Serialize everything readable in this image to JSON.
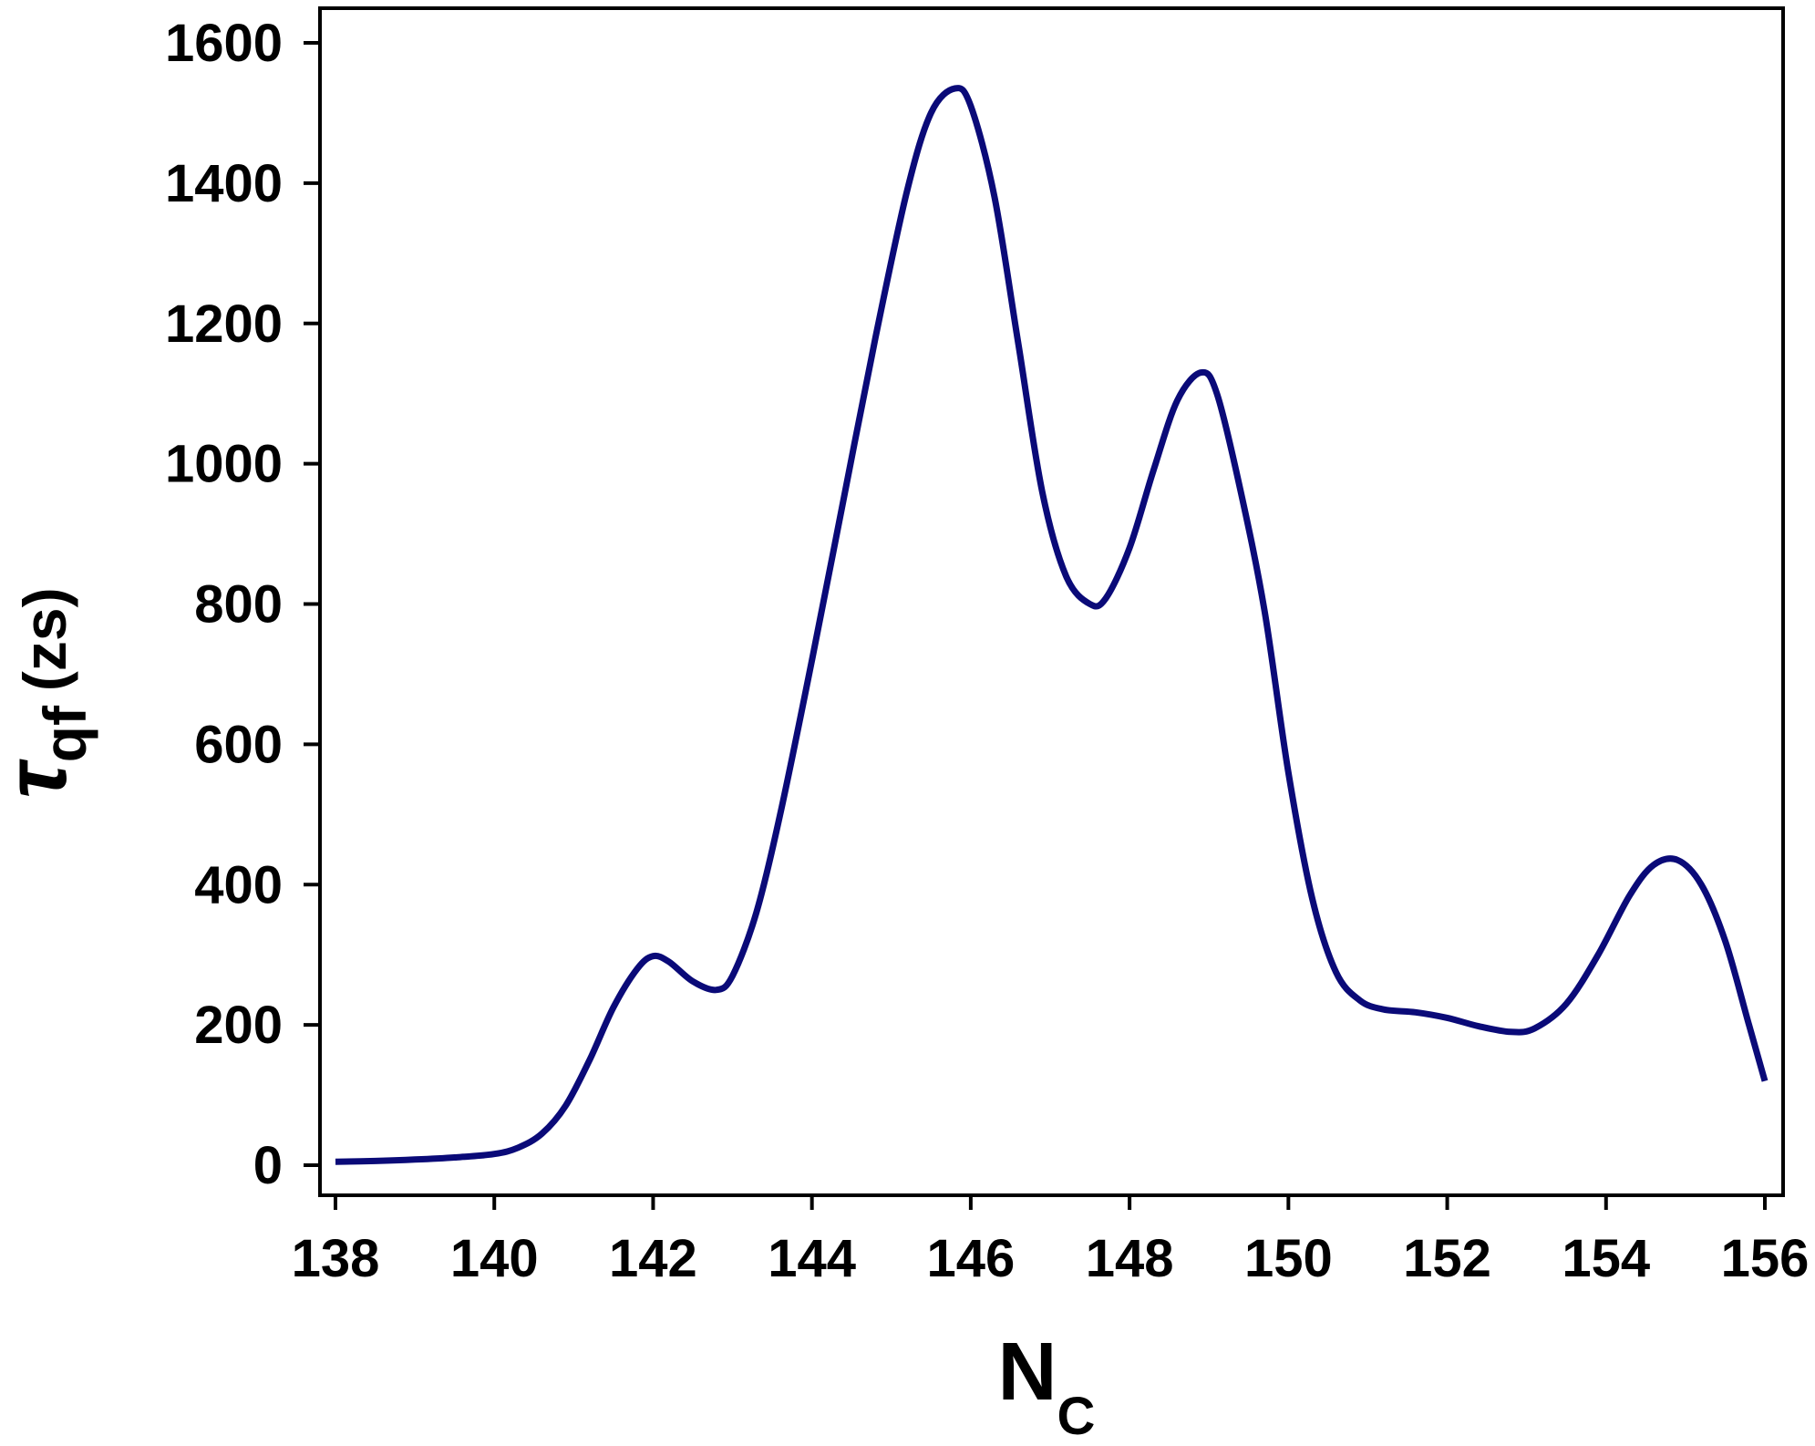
{
  "chart_data": {
    "type": "line",
    "title": "",
    "xlabel": {
      "main": "N",
      "sub": "C"
    },
    "ylabel": {
      "symbol": "τ",
      "sub": "qf",
      "unit": "(zs)"
    },
    "xlim": [
      138,
      156
    ],
    "ylim": [
      0,
      1600
    ],
    "xticks": [
      138,
      140,
      142,
      144,
      146,
      148,
      150,
      152,
      154,
      156
    ],
    "yticks": [
      0,
      200,
      400,
      600,
      800,
      1000,
      1200,
      1400,
      1600
    ],
    "grid": false,
    "legend": "none",
    "line_color": "#0a0a78",
    "series": [
      {
        "x": [
          138.0,
          138.5,
          139.0,
          139.5,
          140.0,
          140.3,
          140.6,
          140.9,
          141.2,
          141.5,
          141.8,
          142.0,
          142.2,
          142.5,
          142.8,
          143.0,
          143.3,
          143.6,
          144.0,
          144.4,
          144.8,
          145.2,
          145.5,
          145.8,
          146.0,
          146.3,
          146.6,
          146.9,
          147.2,
          147.5,
          147.7,
          148.0,
          148.3,
          148.6,
          148.9,
          149.1,
          149.4,
          149.7,
          150.0,
          150.3,
          150.6,
          150.9,
          151.2,
          151.6,
          152.0,
          152.4,
          152.8,
          153.1,
          153.5,
          153.9,
          154.3,
          154.6,
          154.9,
          155.2,
          155.5,
          155.8,
          156.0
        ],
        "y": [
          5,
          6,
          8,
          11,
          16,
          25,
          45,
          85,
          150,
          225,
          280,
          298,
          290,
          262,
          250,
          270,
          360,
          500,
          720,
          950,
          1180,
          1390,
          1500,
          1535,
          1510,
          1380,
          1170,
          960,
          840,
          800,
          808,
          880,
          990,
          1090,
          1130,
          1100,
          960,
          790,
          560,
          380,
          275,
          235,
          222,
          218,
          210,
          198,
          190,
          195,
          230,
          300,
          385,
          428,
          435,
          400,
          320,
          200,
          120
        ]
      }
    ]
  }
}
